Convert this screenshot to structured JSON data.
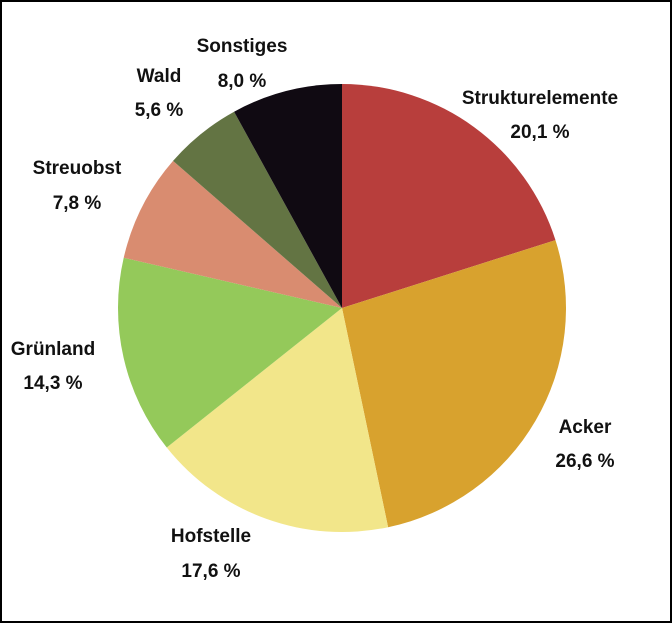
{
  "chart_data": {
    "type": "pie",
    "start_angle_deg": 0,
    "direction": "clockwise",
    "slices": [
      {
        "label": "Strukturelemente",
        "value": 20.1,
        "value_label": "20,1 %",
        "color": "#B83E3C"
      },
      {
        "label": "Acker",
        "value": 26.6,
        "value_label": "26,6 %",
        "color": "#D8A22E"
      },
      {
        "label": "Hofstelle",
        "value": 17.6,
        "value_label": "17,6 %",
        "color": "#F2E68A"
      },
      {
        "label": "Grünland",
        "value": 14.3,
        "value_label": "14,3 %",
        "color": "#94C95A"
      },
      {
        "label": "Streuobst",
        "value": 7.8,
        "value_label": "7,8 %",
        "color": "#D98C70"
      },
      {
        "label": "Wald",
        "value": 5.6,
        "value_label": "5,6 %",
        "color": "#637443"
      },
      {
        "label": "Sonstiges",
        "value": 8.0,
        "value_label": "8,0 %",
        "color": "#100A12"
      }
    ]
  }
}
